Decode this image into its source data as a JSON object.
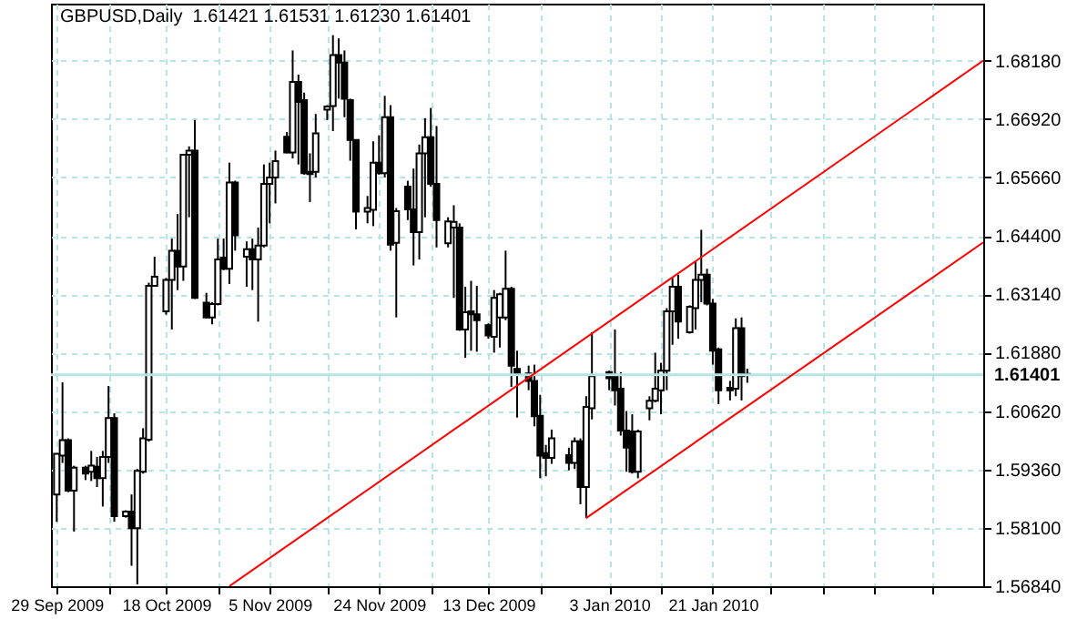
{
  "chart_data": {
    "type": "candlestick",
    "title": "GBPUSD,Daily  1.61421 1.61531 1.61230 1.61401",
    "x": [
      "2009-09-29",
      "2009-09-30",
      "2009-10-01",
      "2009-10-02",
      "2009-10-04",
      "2009-10-05",
      "2009-10-06",
      "2009-10-07",
      "2009-10-08",
      "2009-10-09",
      "2009-10-11",
      "2009-10-12",
      "2009-10-13",
      "2009-10-14",
      "2009-10-15",
      "2009-10-16",
      "2009-10-18",
      "2009-10-19",
      "2009-10-20",
      "2009-10-21",
      "2009-10-22",
      "2009-10-23",
      "2009-10-25",
      "2009-10-26",
      "2009-10-27",
      "2009-10-28",
      "2009-10-29",
      "2009-10-30",
      "2009-11-01",
      "2009-11-02",
      "2009-11-03",
      "2009-11-04",
      "2009-11-05",
      "2009-11-06",
      "2009-11-08",
      "2009-11-09",
      "2009-11-10",
      "2009-11-11",
      "2009-11-12",
      "2009-11-13",
      "2009-11-15",
      "2009-11-16",
      "2009-11-17",
      "2009-11-18",
      "2009-11-19",
      "2009-11-20",
      "2009-11-22",
      "2009-11-23",
      "2009-11-24",
      "2009-11-25",
      "2009-11-26",
      "2009-11-27",
      "2009-11-29",
      "2009-11-30",
      "2009-12-01",
      "2009-12-02",
      "2009-12-03",
      "2009-12-04",
      "2009-12-06",
      "2009-12-07",
      "2009-12-08",
      "2009-12-09",
      "2009-12-10",
      "2009-12-11",
      "2009-12-13",
      "2009-12-14",
      "2009-12-15",
      "2009-12-16",
      "2009-12-17",
      "2009-12-18",
      "2009-12-20",
      "2009-12-21",
      "2009-12-22",
      "2009-12-23",
      "2009-12-24",
      "2009-12-27",
      "2009-12-28",
      "2009-12-29",
      "2009-12-30",
      "2009-12-31",
      "2010-01-03",
      "2010-01-04",
      "2010-01-05",
      "2010-01-06",
      "2010-01-07",
      "2010-01-08",
      "2010-01-10",
      "2010-01-11",
      "2010-01-12",
      "2010-01-13",
      "2010-01-14",
      "2010-01-15",
      "2010-01-17",
      "2010-01-18",
      "2010-01-19",
      "2010-01-20",
      "2010-01-21",
      "2010-01-22",
      "2010-01-24",
      "2010-01-25",
      "2010-01-26",
      "2010-01-27"
    ],
    "ohlc": [
      [
        1.5882,
        1.597,
        1.5823,
        1.597
      ],
      [
        1.5966,
        1.6124,
        1.595,
        1.5999
      ],
      [
        1.5999,
        1.6003,
        1.5887,
        1.589
      ],
      [
        1.589,
        1.5944,
        1.5802,
        1.594
      ],
      [
        1.594,
        1.5944,
        1.5913,
        1.5927
      ],
      [
        1.5931,
        1.5976,
        1.5911,
        1.5944
      ],
      [
        1.5942,
        1.5963,
        1.5898,
        1.5917
      ],
      [
        1.5917,
        1.5976,
        1.5856,
        1.5963
      ],
      [
        1.5963,
        1.6116,
        1.595,
        1.6047
      ],
      [
        1.6047,
        1.6057,
        1.5823,
        1.5835
      ],
      [
        1.5835,
        1.5848,
        1.5832,
        1.5845
      ],
      [
        1.5845,
        1.5882,
        1.5728,
        1.5809
      ],
      [
        1.5809,
        1.5937,
        1.5688,
        1.5933
      ],
      [
        1.5931,
        1.6025,
        1.5927,
        1.6003
      ],
      [
        1.6,
        1.6339,
        1.5996,
        1.6332
      ],
      [
        1.6332,
        1.6395,
        1.633,
        1.6352
      ],
      [
        1.6277,
        1.6349,
        1.627,
        1.6345
      ],
      [
        1.6345,
        1.6434,
        1.6238,
        1.6408
      ],
      [
        1.6408,
        1.6487,
        1.6323,
        1.6374
      ],
      [
        1.6374,
        1.6615,
        1.6343,
        1.6615
      ],
      [
        1.6615,
        1.6633,
        1.648,
        1.6624
      ],
      [
        1.6624,
        1.669,
        1.6304,
        1.6306
      ],
      [
        1.6296,
        1.6317,
        1.6262,
        1.6264
      ],
      [
        1.6264,
        1.6297,
        1.6249,
        1.6293
      ],
      [
        1.6293,
        1.6434,
        1.629,
        1.6389
      ],
      [
        1.6393,
        1.6434,
        1.6366,
        1.6369
      ],
      [
        1.6369,
        1.6598,
        1.6336,
        1.6555
      ],
      [
        1.6555,
        1.6559,
        1.6408,
        1.6441
      ],
      [
        1.6395,
        1.6428,
        1.633,
        1.6411
      ],
      [
        1.6411,
        1.6434,
        1.6323,
        1.6389
      ],
      [
        1.6389,
        1.6458,
        1.6255,
        1.6419
      ],
      [
        1.6419,
        1.6594,
        1.6415,
        1.6552
      ],
      [
        1.6552,
        1.6598,
        1.6467,
        1.6566
      ],
      [
        1.6566,
        1.6624,
        1.651,
        1.6601
      ],
      [
        1.6654,
        1.6664,
        1.6618,
        1.662
      ],
      [
        1.662,
        1.684,
        1.6607,
        1.6772
      ],
      [
        1.6772,
        1.6788,
        1.6594,
        1.6729
      ],
      [
        1.6733,
        1.6749,
        1.6572,
        1.6575
      ],
      [
        1.6578,
        1.6618,
        1.6513,
        1.6573
      ],
      [
        1.6578,
        1.6703,
        1.6566,
        1.6661
      ],
      [
        1.6712,
        1.6722,
        1.669,
        1.6719
      ],
      [
        1.672,
        1.6873,
        1.6666,
        1.683
      ],
      [
        1.683,
        1.6866,
        1.6736,
        1.6814
      ],
      [
        1.6814,
        1.684,
        1.6696,
        1.6736
      ],
      [
        1.6733,
        1.6736,
        1.6602,
        1.6647
      ],
      [
        1.6647,
        1.6647,
        1.6454,
        1.6492
      ],
      [
        1.6492,
        1.6526,
        1.6467,
        1.65
      ],
      [
        1.6496,
        1.6644,
        1.6461,
        1.6598
      ],
      [
        1.6598,
        1.6657,
        1.6572,
        1.6575
      ],
      [
        1.6575,
        1.6742,
        1.6566,
        1.6696
      ],
      [
        1.6696,
        1.6722,
        1.6408,
        1.6421
      ],
      [
        1.6425,
        1.65,
        1.6264,
        1.6493
      ],
      [
        1.6546,
        1.6559,
        1.6474,
        1.6497
      ],
      [
        1.6497,
        1.6585,
        1.6376,
        1.6448
      ],
      [
        1.6448,
        1.6637,
        1.6389,
        1.6618
      ],
      [
        1.6618,
        1.6694,
        1.648,
        1.6653
      ],
      [
        1.6653,
        1.6716,
        1.6546,
        1.6552
      ],
      [
        1.6552,
        1.6677,
        1.6415,
        1.6474
      ],
      [
        1.6424,
        1.648,
        1.6415,
        1.6471
      ],
      [
        1.6458,
        1.6506,
        1.6306,
        1.647
      ],
      [
        1.6458,
        1.6467,
        1.6235,
        1.6238
      ],
      [
        1.6238,
        1.633,
        1.6177,
        1.6275
      ],
      [
        1.6277,
        1.6343,
        1.6192,
        1.6271
      ],
      [
        1.6271,
        1.6332,
        1.619,
        1.6258
      ],
      [
        1.6247,
        1.6251,
        1.6218,
        1.6225
      ],
      [
        1.6222,
        1.6323,
        1.6188,
        1.6306
      ],
      [
        1.6264,
        1.6317,
        1.6199,
        1.6314
      ],
      [
        1.6264,
        1.6408,
        1.6258,
        1.6326
      ],
      [
        1.6326,
        1.633,
        1.6114,
        1.616
      ],
      [
        1.6153,
        1.6192,
        1.6048,
        1.614
      ],
      [
        1.6143,
        1.616,
        1.6107,
        1.6127
      ],
      [
        1.6127,
        1.6162,
        1.6029,
        1.6051
      ],
      [
        1.6052,
        1.6097,
        1.5917,
        1.5966
      ],
      [
        1.5971,
        1.5989,
        1.5921,
        1.5961
      ],
      [
        1.5961,
        1.6022,
        1.5948,
        1.6003
      ],
      [
        1.5967,
        1.5983,
        1.5934,
        1.595
      ],
      [
        1.595,
        1.6005,
        1.5937,
        1.5997
      ],
      [
        1.5997,
        1.6003,
        1.5861,
        1.5898
      ],
      [
        1.5898,
        1.6094,
        1.5831,
        1.6071
      ],
      [
        1.6068,
        1.6232,
        1.6044,
        1.6137
      ],
      [
        1.6146,
        1.6149,
        1.6107,
        1.6133
      ],
      [
        1.6136,
        1.6238,
        1.6074,
        1.6107
      ],
      [
        1.611,
        1.6146,
        1.6009,
        1.602
      ],
      [
        1.602,
        1.6062,
        1.5931,
        1.5983
      ],
      [
        1.6018,
        1.6055,
        1.5927,
        1.5931
      ],
      [
        1.5931,
        1.6022,
        1.5917,
        1.6018
      ],
      [
        1.6068,
        1.6094,
        1.6042,
        1.6084
      ],
      [
        1.6084,
        1.6188,
        1.6081,
        1.611
      ],
      [
        1.6107,
        1.6166,
        1.6055,
        1.6149
      ],
      [
        1.6149,
        1.6284,
        1.6107,
        1.6277
      ],
      [
        1.6277,
        1.6349,
        1.6205,
        1.633
      ],
      [
        1.633,
        1.6356,
        1.6218,
        1.6255
      ],
      [
        1.6232,
        1.629,
        1.6229,
        1.6287
      ],
      [
        1.6284,
        1.6385,
        1.6238,
        1.6345
      ],
      [
        1.6345,
        1.6453,
        1.6297,
        1.6356
      ],
      [
        1.6356,
        1.6369,
        1.629,
        1.6294
      ],
      [
        1.6294,
        1.6304,
        1.6162,
        1.6192
      ],
      [
        1.6195,
        1.6199,
        1.6077,
        1.6107
      ],
      [
        1.6112,
        1.6127,
        1.6085,
        1.6107
      ],
      [
        1.611,
        1.6262,
        1.6094,
        1.6241
      ],
      [
        1.6241,
        1.6264,
        1.6085,
        1.6137
      ],
      [
        1.61421,
        1.61531,
        1.6123,
        1.61401
      ]
    ],
    "series": [
      {
        "type": "line",
        "color": "#ff0000",
        "x": [
          "2009-10-29",
          "2010-03-09"
        ],
        "values": [
          1.5684,
          1.6818
        ]
      },
      {
        "type": "line",
        "color": "#ff0000",
        "x": [
          "2009-12-30",
          "2010-03-09"
        ],
        "values": [
          1.5831,
          1.6426
        ]
      }
    ],
    "ref_lines": [
      {
        "axis": "y",
        "value": 1.61401,
        "label": "1.61401",
        "color": "#b4e4e4"
      }
    ],
    "xlim": [
      "2009-09-28",
      "2010-03-09"
    ],
    "ylim": [
      1.5684,
      1.6941
    ],
    "xticks": [
      {
        "value": "2009-09-29",
        "label": "29 Sep 2009"
      },
      {
        "value": "2009-10-08",
        "label": null
      },
      {
        "value": "2009-10-18",
        "label": "18 Oct 2009"
      },
      {
        "value": "2009-10-27",
        "label": null
      },
      {
        "value": "2009-11-05",
        "label": "5 Nov 2009"
      },
      {
        "value": "2009-11-15",
        "label": null
      },
      {
        "value": "2009-11-24",
        "label": "24 Nov 2009"
      },
      {
        "value": "2009-12-03",
        "label": null
      },
      {
        "value": "2009-12-13",
        "label": "13 Dec 2009"
      },
      {
        "value": "2009-12-22",
        "label": null
      },
      {
        "value": "2010-01-03",
        "label": "3 Jan 2010"
      },
      {
        "value": "2010-01-12",
        "label": null
      },
      {
        "value": "2010-01-21",
        "label": "21 Jan 2010"
      },
      {
        "value": "2010-01-31",
        "label": null
      },
      {
        "value": "2010-02-09",
        "label": null
      },
      {
        "value": "2010-02-18",
        "label": null
      },
      {
        "value": "2010-02-28",
        "label": null
      }
    ],
    "yticks": [
      {
        "value": 1.5684,
        "label": "1.56840"
      },
      {
        "value": 1.581,
        "label": "1.58100"
      },
      {
        "value": 1.5936,
        "label": "1.59360"
      },
      {
        "value": 1.6062,
        "label": "1.60620"
      },
      {
        "value": 1.6188,
        "label": "1.61880"
      },
      {
        "value": 1.6314,
        "label": "1.63140"
      },
      {
        "value": 1.644,
        "label": "1.64400"
      },
      {
        "value": 1.6566,
        "label": "1.65660"
      },
      {
        "value": 1.6692,
        "label": "1.66920"
      },
      {
        "value": 1.6818,
        "label": "1.68180"
      }
    ],
    "grid": true
  }
}
